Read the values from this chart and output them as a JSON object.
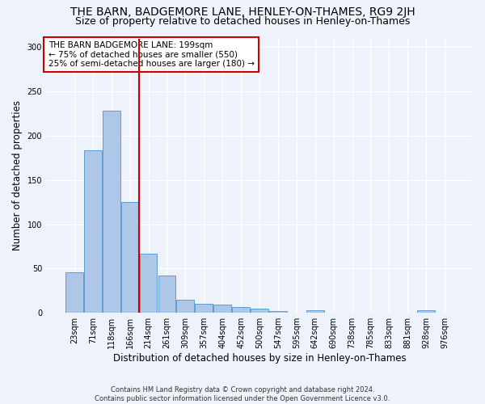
{
  "title": "THE BARN, BADGEMORE LANE, HENLEY-ON-THAMES, RG9 2JH",
  "subtitle": "Size of property relative to detached houses in Henley-on-Thames",
  "xlabel": "Distribution of detached houses by size in Henley-on-Thames",
  "ylabel": "Number of detached properties",
  "footer": "Contains HM Land Registry data © Crown copyright and database right 2024.\nContains public sector information licensed under the Open Government Licence v3.0.",
  "categories": [
    "23sqm",
    "71sqm",
    "118sqm",
    "166sqm",
    "214sqm",
    "261sqm",
    "309sqm",
    "357sqm",
    "404sqm",
    "452sqm",
    "500sqm",
    "547sqm",
    "595sqm",
    "642sqm",
    "690sqm",
    "738sqm",
    "785sqm",
    "833sqm",
    "881sqm",
    "928sqm",
    "976sqm"
  ],
  "values": [
    46,
    184,
    228,
    125,
    67,
    42,
    15,
    10,
    9,
    7,
    5,
    2,
    0,
    3,
    0,
    0,
    0,
    0,
    0,
    3,
    0
  ],
  "bar_color": "#aec6e8",
  "bar_edge_color": "#5a9fd4",
  "red_line_index": 4.0,
  "red_line_color": "#cc0000",
  "annotation_text": "THE BARN BADGEMORE LANE: 199sqm\n← 75% of detached houses are smaller (550)\n25% of semi-detached houses are larger (180) →",
  "annotation_box_color": "white",
  "annotation_box_edge": "#cc0000",
  "ylim": [
    0,
    310
  ],
  "yticks": [
    0,
    50,
    100,
    150,
    200,
    250,
    300
  ],
  "background_color": "#eef2fa",
  "grid_color": "white",
  "title_fontsize": 10,
  "subtitle_fontsize": 9,
  "xlabel_fontsize": 8.5,
  "ylabel_fontsize": 8.5,
  "tick_fontsize": 7,
  "annotation_fontsize": 7.5,
  "footer_fontsize": 6
}
